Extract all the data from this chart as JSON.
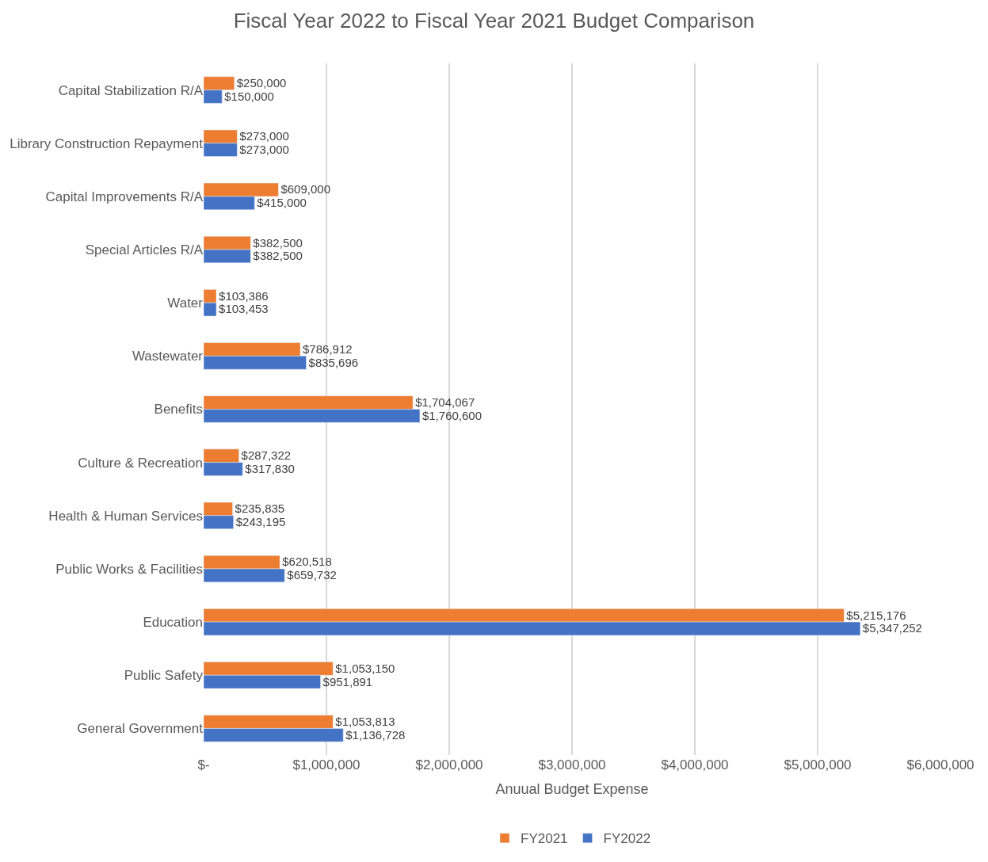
{
  "chart_data": {
    "type": "bar",
    "orientation": "horizontal",
    "title": "Fiscal Year 2022 to Fiscal Year 2021 Budget Comparison",
    "xlabel": "Anuual Budget Expense",
    "categories": [
      "Capital Stabilization R/A",
      "Library Construction Repayment",
      "Capital Improvements R/A",
      "Special Articles R/A",
      "Water",
      "Wastewater",
      "Benefits",
      "Culture & Recreation",
      "Health & Human Services",
      "Public Works & Facilities",
      "Education",
      "Public Safety",
      "General Government"
    ],
    "series": [
      {
        "name": "FY2021",
        "color": "#ed7d31",
        "values": [
          250000,
          273000,
          609000,
          382500,
          103386,
          786912,
          1704067,
          287322,
          235835,
          620518,
          5215176,
          1053150,
          1053813
        ],
        "value_labels": [
          "$250,000",
          "$273,000",
          "$609,000",
          "$382,500",
          "$103,386",
          "$786,912",
          "$1,704,067",
          "$287,322",
          "$235,835",
          "$620,518",
          "$5,215,176",
          "$1,053,150",
          "$1,053,813"
        ]
      },
      {
        "name": "FY2022",
        "color": "#4472c4",
        "values": [
          150000,
          273000,
          415000,
          382500,
          103453,
          835696,
          1760600,
          317830,
          243195,
          659732,
          5347252,
          951891,
          1136728
        ],
        "value_labels": [
          "$150,000",
          "$273,000",
          "$415,000",
          "$382,500",
          "$103,453",
          "$835,696",
          "$1,760,600",
          "$317,830",
          "$243,195",
          "$659,732",
          "$5,347,252",
          "$951,891",
          "$1,136,728"
        ]
      }
    ],
    "xlim": [
      0,
      6000000
    ],
    "xticks": [
      {
        "value": 0,
        "label": "$-"
      },
      {
        "value": 1000000,
        "label": "$1,000,000"
      },
      {
        "value": 2000000,
        "label": "$2,000,000"
      },
      {
        "value": 3000000,
        "label": "$3,000,000"
      },
      {
        "value": 4000000,
        "label": "$4,000,000"
      },
      {
        "value": 5000000,
        "label": "$5,000,000"
      },
      {
        "value": 6000000,
        "label": "$6,000,000"
      }
    ],
    "grid": "x",
    "legend": "bottom"
  }
}
